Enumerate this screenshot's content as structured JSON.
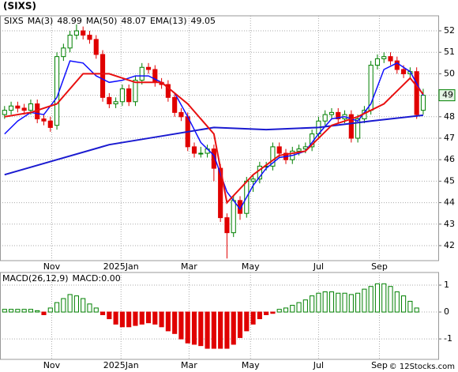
{
  "chart_data": [
    {
      "type": "candlestick",
      "title": "(SIXS)",
      "name": "SIXS",
      "name_color": "#008000",
      "x": [
        0,
        1,
        2,
        3,
        4,
        5,
        6,
        7,
        8,
        9,
        10,
        11,
        12,
        13,
        14,
        15,
        16,
        17,
        18,
        19,
        20,
        21,
        22,
        23,
        24,
        25,
        26,
        27,
        28,
        29,
        30,
        31,
        32,
        33,
        34,
        35,
        36,
        37,
        38,
        39,
        40,
        41,
        42,
        43,
        44,
        45,
        46,
        47,
        48,
        49,
        50,
        51,
        52,
        53,
        54,
        55,
        56,
        57,
        58,
        59,
        60,
        61,
        62,
        63,
        64
      ],
      "open": [
        48.1,
        48.3,
        48.5,
        48.4,
        48.3,
        48.6,
        47.9,
        47.8,
        47.6,
        50.8,
        51.2,
        51.8,
        52.0,
        51.8,
        51.6,
        50.9,
        48.9,
        48.6,
        48.7,
        49.3,
        48.7,
        49.7,
        50.3,
        50.2,
        49.6,
        49.5,
        48.9,
        48.2,
        48.0,
        46.6,
        46.3,
        46.3,
        46.5,
        45.6,
        43.3,
        42.6,
        44.1,
        43.5,
        45.0,
        45.1,
        45.7,
        45.7,
        46.6,
        46.3,
        46.0,
        46.4,
        46.5,
        46.6,
        47.2,
        47.8,
        48.1,
        48.2,
        47.9,
        48.1,
        47.0,
        47.9,
        48.3,
        50.4,
        50.7,
        50.8,
        50.6,
        50.2,
        50.0,
        50.1,
        48.3
      ],
      "high": [
        48.5,
        48.7,
        48.7,
        48.6,
        48.8,
        48.8,
        48.1,
        48.0,
        51.0,
        51.4,
        52.0,
        52.3,
        52.2,
        52.0,
        51.8,
        51.1,
        49.1,
        48.9,
        49.5,
        49.5,
        49.9,
        50.5,
        50.5,
        50.4,
        49.8,
        49.7,
        49.1,
        48.4,
        48.2,
        46.8,
        46.6,
        46.7,
        46.7,
        45.8,
        43.5,
        44.3,
        44.3,
        45.2,
        45.3,
        45.9,
        45.9,
        46.8,
        46.8,
        46.5,
        46.6,
        46.7,
        46.8,
        47.4,
        48.0,
        48.3,
        48.4,
        48.4,
        48.3,
        48.3,
        48.1,
        48.5,
        50.6,
        50.9,
        51.0,
        51.0,
        50.8,
        50.4,
        50.3,
        50.3,
        49.3
      ],
      "low": [
        47.9,
        48.1,
        48.2,
        48.1,
        48.1,
        47.7,
        47.6,
        47.3,
        47.4,
        50.6,
        51.0,
        51.6,
        51.6,
        51.4,
        50.7,
        48.7,
        48.4,
        48.4,
        48.5,
        48.5,
        48.5,
        49.5,
        50.0,
        49.4,
        49.3,
        48.7,
        48.0,
        47.8,
        46.4,
        46.1,
        46.1,
        46.1,
        45.0,
        43.1,
        41.4,
        42.4,
        43.2,
        43.3,
        44.5,
        44.9,
        45.5,
        45.5,
        46.1,
        45.8,
        45.8,
        46.2,
        46.3,
        46.4,
        47.0,
        47.6,
        47.9,
        47.7,
        47.7,
        46.8,
        46.8,
        47.7,
        48.1,
        50.2,
        50.5,
        50.4,
        50.0,
        49.8,
        49.8,
        47.9,
        48.1
      ],
      "close": [
        48.3,
        48.5,
        48.4,
        48.3,
        48.6,
        47.9,
        47.8,
        47.5,
        50.8,
        51.2,
        51.8,
        52.0,
        51.8,
        51.6,
        50.9,
        48.9,
        48.6,
        48.7,
        49.3,
        48.7,
        49.7,
        50.3,
        50.2,
        49.6,
        49.5,
        48.9,
        48.2,
        48.0,
        46.6,
        46.3,
        46.3,
        46.5,
        45.6,
        43.3,
        42.6,
        44.1,
        43.5,
        45.0,
        45.1,
        45.7,
        45.7,
        46.6,
        46.3,
        46.0,
        46.4,
        46.5,
        46.6,
        47.2,
        47.8,
        48.1,
        48.2,
        47.9,
        48.1,
        47.0,
        47.9,
        48.3,
        50.4,
        50.7,
        50.8,
        50.6,
        50.2,
        50.0,
        50.1,
        48.1,
        49.0
      ],
      "up_color": "#008000",
      "down_color": "#e00000",
      "lines": [
        {
          "name": "MA(3)",
          "last": 48.99,
          "color": "#1010ff",
          "width": 1.5,
          "x": [
            0,
            2,
            4,
            6,
            8,
            10,
            12,
            14,
            16,
            18,
            20,
            22,
            24,
            26,
            28,
            30,
            32,
            34,
            36,
            38,
            40,
            42,
            44,
            46,
            48,
            50,
            52,
            54,
            56,
            58,
            60,
            62,
            64
          ],
          "values": [
            47.2,
            47.8,
            48.2,
            48.1,
            48.9,
            50.6,
            50.5,
            49.9,
            49.6,
            49.7,
            49.9,
            49.9,
            49.6,
            49.1,
            48.0,
            46.8,
            46.2,
            44.5,
            43.7,
            44.8,
            45.6,
            46.1,
            46.2,
            46.4,
            47.2,
            47.9,
            48.0,
            47.8,
            48.6,
            50.2,
            50.5,
            50.1,
            48.99
          ]
        },
        {
          "name": "MA(50)",
          "last": 48.07,
          "color": "#1a1ad0",
          "width": 2,
          "x": [
            0,
            8,
            16,
            24,
            32,
            40,
            48,
            56,
            64
          ],
          "values": [
            45.3,
            46.0,
            46.7,
            47.1,
            47.5,
            47.4,
            47.5,
            47.8,
            48.07
          ]
        },
        {
          "name": "EMA(13)",
          "last": 49.05,
          "color": "#e81010",
          "width": 2,
          "x": [
            0,
            4,
            8,
            12,
            16,
            20,
            24,
            28,
            32,
            34,
            38,
            42,
            46,
            50,
            54,
            58,
            62,
            64
          ],
          "values": [
            48.0,
            48.2,
            48.6,
            50.0,
            50.0,
            49.6,
            49.6,
            48.6,
            47.2,
            44.0,
            45.3,
            46.2,
            46.4,
            47.6,
            48.0,
            48.6,
            49.8,
            49.05
          ]
        }
      ],
      "xlim": [
        -0.7,
        66.3
      ],
      "ylim": [
        41.3,
        52.7
      ],
      "xticks": [
        {
          "value": 7.2,
          "label": "Nov"
        },
        {
          "value": 17.8,
          "label": "2025Jan"
        },
        {
          "value": 28.2,
          "label": "Mar"
        },
        {
          "value": 37.6,
          "label": "May"
        },
        {
          "value": 48,
          "label": "Jul"
        },
        {
          "value": 57.3,
          "label": "Sep"
        }
      ],
      "yticks": [
        42,
        43,
        44,
        45,
        46,
        47,
        48,
        49,
        50,
        51,
        52
      ],
      "grid": true,
      "price_tag": 49,
      "tag_color": "#008000"
    },
    {
      "type": "bar",
      "title": "MACD(26,12,9)",
      "value_text": "MACD:0.00",
      "title_color": "#1010c0",
      "x": [
        0,
        1,
        2,
        3,
        4,
        5,
        6,
        7,
        8,
        9,
        10,
        11,
        12,
        13,
        14,
        15,
        16,
        17,
        18,
        19,
        20,
        21,
        22,
        23,
        24,
        25,
        26,
        27,
        28,
        29,
        30,
        31,
        32,
        33,
        34,
        35,
        36,
        37,
        38,
        39,
        40,
        41,
        42,
        43,
        44,
        45,
        46,
        47,
        48,
        49,
        50,
        51,
        52,
        53,
        54,
        55,
        56,
        57,
        58,
        59,
        60,
        61,
        62,
        63,
        64
      ],
      "values": [
        0.1,
        0.1,
        0.1,
        0.1,
        0.1,
        0.05,
        -0.1,
        0.15,
        0.35,
        0.5,
        0.65,
        0.6,
        0.5,
        0.3,
        0.15,
        -0.1,
        -0.25,
        -0.45,
        -0.55,
        -0.55,
        -0.5,
        -0.45,
        -0.4,
        -0.45,
        -0.55,
        -0.7,
        -0.8,
        -1.0,
        -1.15,
        -1.2,
        -1.25,
        -1.35,
        -1.35,
        -1.35,
        -1.35,
        -1.2,
        -0.95,
        -0.7,
        -0.45,
        -0.25,
        -0.1,
        -0.05,
        0.1,
        0.15,
        0.25,
        0.35,
        0.45,
        0.6,
        0.7,
        0.75,
        0.75,
        0.7,
        0.7,
        0.65,
        0.7,
        0.85,
        0.95,
        1.05,
        1.05,
        0.95,
        0.75,
        0.6,
        0.4,
        0.15,
        0.0
      ],
      "up_color": "#008000",
      "down_color": "#e00000",
      "xlim": [
        -0.7,
        66.3
      ],
      "ylim": [
        -1.76,
        1.47
      ],
      "xticks": [
        {
          "value": 7.2,
          "label": "Nov"
        },
        {
          "value": 17.8,
          "label": "2025Jan"
        },
        {
          "value": 28.2,
          "label": "Mar"
        },
        {
          "value": 37.6,
          "label": "May"
        },
        {
          "value": 48,
          "label": "Jul"
        },
        {
          "value": 57.3,
          "label": "Sep"
        }
      ],
      "yticks": [
        -1,
        0,
        1
      ],
      "grid": true
    }
  ],
  "footer": "© 12Stocks.com"
}
